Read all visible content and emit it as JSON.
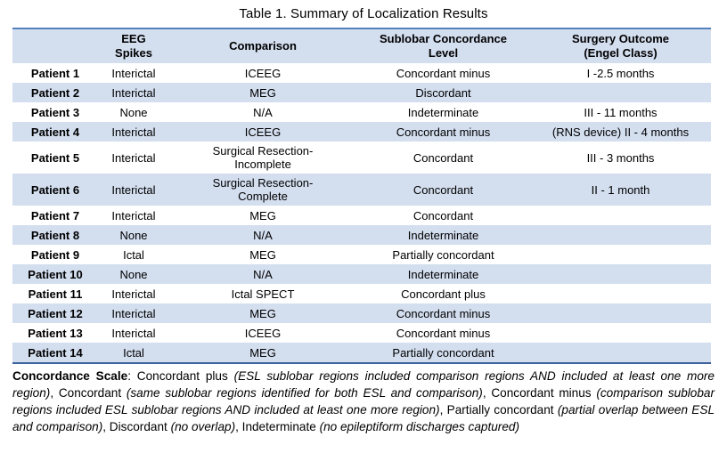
{
  "title": "Table 1. Summary of Localization Results",
  "colors": {
    "stripe_blue": "#D3DEEF",
    "top_rule_blue": "#5580BC",
    "bottom_rule_blue": "#3D639D"
  },
  "table": {
    "headers": [
      "",
      "EEG\nSpikes",
      "Comparison",
      "Sublobar Concordance\nLevel",
      "Surgery Outcome\n(Engel Class)"
    ],
    "rows": [
      {
        "cells": [
          "Patient 1",
          "Interictal",
          "ICEEG",
          "Concordant minus",
          "I -2.5 months"
        ]
      },
      {
        "cells": [
          "Patient 2",
          "Interictal",
          "MEG",
          "Discordant",
          ""
        ]
      },
      {
        "cells": [
          "Patient 3",
          "None",
          "N/A",
          "Indeterminate",
          "III - 11 months"
        ]
      },
      {
        "cells": [
          "Patient 4",
          "Interictal",
          "ICEEG",
          "Concordant minus",
          "(RNS device) II - 4 months"
        ]
      },
      {
        "cells": [
          "Patient 5",
          "Interictal",
          "Surgical Resection-\nIncomplete",
          "Concordant",
          "III - 3 months"
        ]
      },
      {
        "cells": [
          "Patient 6",
          "Interictal",
          "Surgical Resection-\nComplete",
          "Concordant",
          "II - 1 month"
        ]
      },
      {
        "cells": [
          "Patient 7",
          "Interictal",
          "MEG",
          "Concordant",
          ""
        ]
      },
      {
        "cells": [
          "Patient 8",
          "None",
          "N/A",
          "Indeterminate",
          ""
        ]
      },
      {
        "cells": [
          "Patient 9",
          "Ictal",
          "MEG",
          "Partially concordant",
          ""
        ]
      },
      {
        "cells": [
          "Patient 10",
          "None",
          "N/A",
          "Indeterminate",
          ""
        ]
      },
      {
        "cells": [
          "Patient 11",
          "Interictal",
          "Ictal SPECT",
          "Concordant plus",
          ""
        ]
      },
      {
        "cells": [
          "Patient 12",
          "Interictal",
          "MEG",
          "Concordant minus",
          ""
        ]
      },
      {
        "cells": [
          "Patient 13",
          "Interictal",
          "ICEEG",
          "Concordant minus",
          ""
        ]
      },
      {
        "cells": [
          "Patient 14",
          "Ictal",
          "MEG",
          "Partially concordant",
          ""
        ]
      }
    ]
  },
  "footer": {
    "segments": [
      {
        "text": "Concordance Scale",
        "style": "bold"
      },
      {
        "text": ": Concordant plus ",
        "style": "normal"
      },
      {
        "text": "(ESL sublobar regions included comparison regions AND included at least one more region)",
        "style": "italic"
      },
      {
        "text": ", Concordant ",
        "style": "normal"
      },
      {
        "text": "(same sublobar regions identified for both ESL and comparison)",
        "style": "italic"
      },
      {
        "text": ", Concordant minus ",
        "style": "normal"
      },
      {
        "text": "(comparison sublobar regions included ESL sublobar regions AND included at least one more region)",
        "style": "italic"
      },
      {
        "text": ", Partially concordant ",
        "style": "normal"
      },
      {
        "text": "(partial overlap between ESL and comparison)",
        "style": "italic"
      },
      {
        "text": ", Discordant ",
        "style": "normal"
      },
      {
        "text": "(no overlap)",
        "style": "italic"
      },
      {
        "text": ", Indeterminate ",
        "style": "normal"
      },
      {
        "text": "(no epileptiform discharges captured)",
        "style": "italic"
      }
    ]
  }
}
